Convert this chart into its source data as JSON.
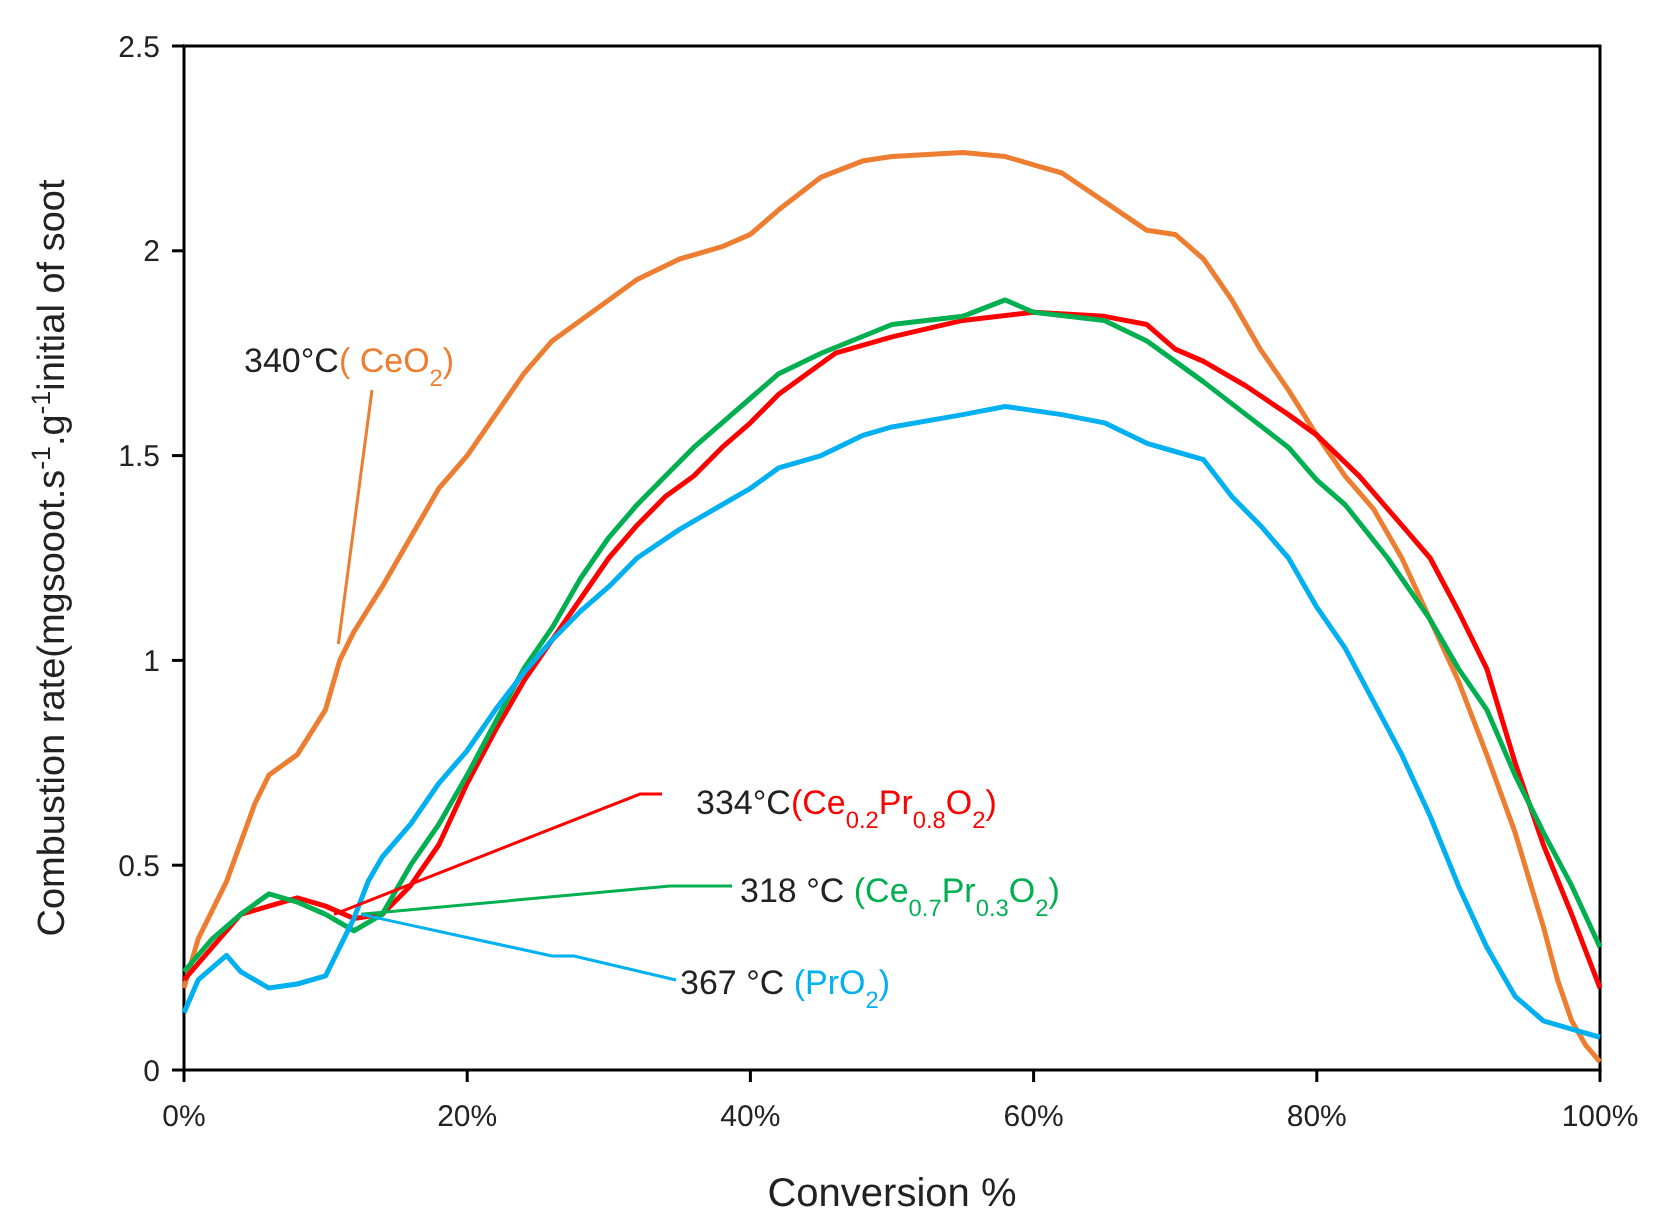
{
  "chart_data": {
    "type": "line",
    "xlabel": "Conversion %",
    "ylabel": "Combustion rate(mgsooot.s$^{-1}$.g$^{-1}$initial of soot",
    "xlim": [
      0,
      100
    ],
    "xticks": [
      {
        "value": 0,
        "label": "0%"
      },
      {
        "value": 20,
        "label": "20%"
      },
      {
        "value": 40,
        "label": "40%"
      },
      {
        "value": 60,
        "label": "60%"
      },
      {
        "value": 80,
        "label": "80%"
      },
      {
        "value": 100,
        "label": "100%"
      }
    ],
    "ylim": [
      0,
      2.5
    ],
    "yticks": [
      0,
      0.5,
      1,
      1.5,
      2,
      2.5
    ],
    "grid": false,
    "marker": "none",
    "line_style": "solid",
    "annotations": [
      {
        "text": "340°C( CeO$_{2}$)",
        "x": 10.9,
        "y": 1.04
      },
      {
        "text": "334°C(Ce$_{0.2}$Pr$_{0.8}$O$_{2}$)",
        "x": 10.6,
        "y": 0.38
      },
      {
        "text": "318 °C (Ce$_{0.7}$Pr$_{0.3}$O$_{2}$)",
        "x": 12.5,
        "y": 0.38
      },
      {
        "text": "367 °C (PrO$_{2}$)",
        "x": 12.5,
        "y": 0.38
      }
    ],
    "series": [
      {
        "color": "#ed7d31",
        "x": [
          0,
          1,
          3,
          5,
          6,
          8,
          10,
          11,
          12,
          14,
          16,
          18,
          20,
          22,
          24,
          26,
          28,
          30,
          32,
          35,
          38,
          40,
          42,
          45,
          48,
          50,
          55,
          58,
          60,
          62,
          65,
          68,
          70,
          72,
          74,
          76,
          78,
          80,
          82,
          84,
          86,
          88,
          90,
          92,
          94,
          96,
          97,
          98,
          99,
          100
        ],
        "values": [
          0.2,
          0.32,
          0.46,
          0.65,
          0.72,
          0.77,
          0.88,
          1.0,
          1.07,
          1.18,
          1.3,
          1.42,
          1.5,
          1.6,
          1.7,
          1.78,
          1.83,
          1.88,
          1.93,
          1.98,
          2.01,
          2.04,
          2.1,
          2.18,
          2.22,
          2.23,
          2.24,
          2.23,
          2.21,
          2.19,
          2.12,
          2.05,
          2.04,
          1.98,
          1.88,
          1.76,
          1.66,
          1.55,
          1.45,
          1.37,
          1.25,
          1.1,
          0.95,
          0.77,
          0.58,
          0.35,
          0.22,
          0.12,
          0.06,
          0.02
        ]
      },
      {
        "color": "#ff0000",
        "x": [
          0,
          2,
          4,
          6,
          8,
          10,
          12,
          14,
          16,
          18,
          20,
          22,
          24,
          26,
          28,
          30,
          32,
          34,
          36,
          38,
          40,
          42,
          44,
          46,
          50,
          55,
          60,
          65,
          68,
          70,
          72,
          75,
          78,
          80,
          83,
          86,
          88,
          90,
          92,
          94,
          96,
          98,
          100
        ],
        "values": [
          0.22,
          0.3,
          0.38,
          0.4,
          0.42,
          0.4,
          0.37,
          0.38,
          0.45,
          0.55,
          0.7,
          0.83,
          0.95,
          1.05,
          1.15,
          1.25,
          1.33,
          1.4,
          1.45,
          1.52,
          1.58,
          1.65,
          1.7,
          1.75,
          1.79,
          1.83,
          1.85,
          1.84,
          1.82,
          1.76,
          1.73,
          1.67,
          1.6,
          1.55,
          1.45,
          1.33,
          1.25,
          1.12,
          0.98,
          0.75,
          0.55,
          0.38,
          0.2
        ]
      },
      {
        "color": "#00b050",
        "x": [
          0,
          2,
          4,
          6,
          8,
          10,
          12,
          14,
          16,
          18,
          20,
          22,
          24,
          26,
          28,
          30,
          32,
          34,
          36,
          38,
          40,
          42,
          45,
          50,
          55,
          58,
          60,
          65,
          68,
          70,
          72,
          75,
          78,
          80,
          82,
          85,
          88,
          90,
          92,
          94,
          96,
          98,
          100
        ],
        "values": [
          0.24,
          0.32,
          0.38,
          0.43,
          0.41,
          0.38,
          0.34,
          0.38,
          0.5,
          0.6,
          0.72,
          0.85,
          0.98,
          1.08,
          1.2,
          1.3,
          1.38,
          1.45,
          1.52,
          1.58,
          1.64,
          1.7,
          1.75,
          1.82,
          1.84,
          1.88,
          1.85,
          1.83,
          1.78,
          1.73,
          1.68,
          1.6,
          1.52,
          1.44,
          1.38,
          1.25,
          1.1,
          0.98,
          0.88,
          0.72,
          0.58,
          0.45,
          0.3
        ]
      },
      {
        "color": "#00b0f0",
        "x": [
          0,
          1,
          3,
          4,
          6,
          8,
          10,
          11,
          12,
          13,
          14,
          16,
          18,
          20,
          22,
          24,
          26,
          28,
          30,
          32,
          35,
          38,
          40,
          42,
          45,
          48,
          50,
          55,
          58,
          62,
          65,
          68,
          70,
          72,
          74,
          76,
          78,
          80,
          82,
          84,
          86,
          88,
          90,
          92,
          94,
          96,
          98,
          100
        ],
        "values": [
          0.14,
          0.22,
          0.28,
          0.24,
          0.2,
          0.21,
          0.23,
          0.3,
          0.37,
          0.46,
          0.52,
          0.6,
          0.7,
          0.78,
          0.88,
          0.97,
          1.05,
          1.12,
          1.18,
          1.25,
          1.32,
          1.38,
          1.42,
          1.47,
          1.5,
          1.55,
          1.57,
          1.6,
          1.62,
          1.6,
          1.58,
          1.53,
          1.51,
          1.49,
          1.4,
          1.33,
          1.25,
          1.13,
          1.03,
          0.9,
          0.77,
          0.62,
          0.45,
          0.3,
          0.18,
          0.12,
          0.1,
          0.08
        ]
      }
    ]
  }
}
